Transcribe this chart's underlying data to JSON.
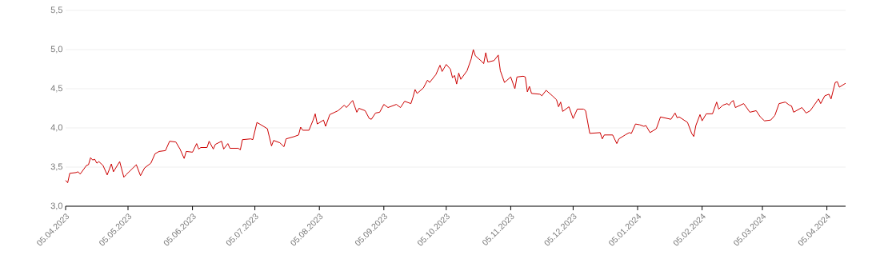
{
  "chart_data": {
    "type": "line",
    "x": [
      "2023-04-05",
      "2023-04-06",
      "2023-04-07",
      "2023-04-10",
      "2023-04-11",
      "2023-04-12",
      "2023-04-15",
      "2023-04-16",
      "2023-04-17",
      "2023-04-18",
      "2023-04-19",
      "2023-04-20",
      "2023-04-21",
      "2023-04-23",
      "2023-04-25",
      "2023-04-27",
      "2023-04-28",
      "2023-05-01",
      "2023-05-03",
      "2023-05-04",
      "2023-05-09",
      "2023-05-11",
      "2023-05-13",
      "2023-05-16",
      "2023-05-18",
      "2023-05-20",
      "2023-05-23",
      "2023-05-25",
      "2023-05-28",
      "2023-05-30",
      "2023-06-01",
      "2023-06-02",
      "2023-06-05",
      "2023-06-07",
      "2023-06-08",
      "2023-06-09",
      "2023-06-12",
      "2023-06-13",
      "2023-06-15",
      "2023-06-16",
      "2023-06-19",
      "2023-06-20",
      "2023-06-22",
      "2023-06-23",
      "2023-06-27",
      "2023-06-28",
      "2023-06-29",
      "2023-07-03",
      "2023-07-04",
      "2023-07-06",
      "2023-07-11",
      "2023-07-13",
      "2023-07-14",
      "2023-07-17",
      "2023-07-19",
      "2023-07-20",
      "2023-07-24",
      "2023-07-26",
      "2023-07-27",
      "2023-07-28",
      "2023-07-31",
      "2023-08-02",
      "2023-08-03",
      "2023-08-04",
      "2023-08-07",
      "2023-08-08",
      "2023-08-10",
      "2023-08-14",
      "2023-08-17",
      "2023-08-18",
      "2023-08-21",
      "2023-08-23",
      "2023-08-24",
      "2023-08-27",
      "2023-08-29",
      "2023-08-30",
      "2023-09-01",
      "2023-09-03",
      "2023-09-05",
      "2023-09-07",
      "2023-09-11",
      "2023-09-13",
      "2023-09-15",
      "2023-09-18",
      "2023-09-19",
      "2023-09-20",
      "2023-09-21",
      "2023-09-24",
      "2023-09-25",
      "2023-09-26",
      "2023-09-27",
      "2023-09-30",
      "2023-10-02",
      "2023-10-03",
      "2023-10-05",
      "2023-10-07",
      "2023-10-08",
      "2023-10-09",
      "2023-10-10",
      "2023-10-11",
      "2023-10-12",
      "2023-10-15",
      "2023-10-17",
      "2023-10-18",
      "2023-10-19",
      "2023-10-22",
      "2023-10-23",
      "2023-10-24",
      "2023-10-25",
      "2023-10-28",
      "2023-10-30",
      "2023-10-31",
      "2023-11-02",
      "2023-11-05",
      "2023-11-07",
      "2023-11-08",
      "2023-11-11",
      "2023-11-12",
      "2023-11-13",
      "2023-11-14",
      "2023-11-15",
      "2023-11-19",
      "2023-11-20",
      "2023-11-22",
      "2023-11-25",
      "2023-11-27",
      "2023-11-28",
      "2023-11-29",
      "2023-11-30",
      "2023-12-03",
      "2023-12-05",
      "2023-12-07",
      "2023-12-10",
      "2023-12-11",
      "2023-12-13",
      "2023-12-18",
      "2023-12-19",
      "2023-12-20",
      "2023-12-24",
      "2023-12-26",
      "2023-12-27",
      "2023-12-30",
      "2024-01-01",
      "2024-01-02",
      "2024-01-04",
      "2024-01-06",
      "2024-01-08",
      "2024-01-09",
      "2024-01-11",
      "2024-01-14",
      "2024-01-16",
      "2024-01-21",
      "2024-01-23",
      "2024-01-24",
      "2024-01-25",
      "2024-01-29",
      "2024-01-31",
      "2024-02-01",
      "2024-02-02",
      "2024-02-04",
      "2024-02-05",
      "2024-02-07",
      "2024-02-10",
      "2024-02-12",
      "2024-02-13",
      "2024-02-15",
      "2024-02-17",
      "2024-02-18",
      "2024-02-19",
      "2024-02-20",
      "2024-02-21",
      "2024-02-25",
      "2024-02-28",
      "2024-03-02",
      "2024-03-04",
      "2024-03-06",
      "2024-03-09",
      "2024-03-11",
      "2024-03-13",
      "2024-03-16",
      "2024-03-18",
      "2024-03-19",
      "2024-03-20",
      "2024-03-24",
      "2024-03-26",
      "2024-03-28",
      "2024-04-01",
      "2024-04-02",
      "2024-04-04",
      "2024-04-06",
      "2024-04-07",
      "2024-04-09",
      "2024-04-10",
      "2024-04-11",
      "2024-04-14"
    ],
    "series": [
      {
        "color": "#cc0000",
        "values": [
          3.33,
          3.3,
          3.42,
          3.43,
          3.44,
          3.41,
          3.52,
          3.53,
          3.62,
          3.59,
          3.6,
          3.55,
          3.57,
          3.52,
          3.4,
          3.54,
          3.44,
          3.57,
          3.37,
          3.4,
          3.53,
          3.39,
          3.49,
          3.55,
          3.67,
          3.7,
          3.71,
          3.83,
          3.82,
          3.73,
          3.61,
          3.7,
          3.69,
          3.8,
          3.73,
          3.75,
          3.75,
          3.83,
          3.73,
          3.79,
          3.83,
          3.73,
          3.8,
          3.74,
          3.74,
          3.72,
          3.85,
          3.86,
          3.85,
          4.07,
          3.99,
          3.77,
          3.84,
          3.81,
          3.76,
          3.86,
          3.89,
          3.91,
          4.01,
          3.97,
          3.97,
          4.1,
          4.18,
          4.05,
          4.1,
          4.02,
          4.17,
          4.22,
          4.29,
          4.26,
          4.35,
          4.2,
          4.25,
          4.22,
          4.12,
          4.11,
          4.19,
          4.2,
          4.3,
          4.26,
          4.3,
          4.26,
          4.34,
          4.31,
          4.39,
          4.49,
          4.44,
          4.51,
          4.56,
          4.61,
          4.58,
          4.68,
          4.8,
          4.72,
          4.81,
          4.75,
          4.64,
          4.67,
          4.56,
          4.7,
          4.62,
          4.73,
          4.88,
          5.0,
          4.92,
          4.85,
          4.82,
          4.96,
          4.84,
          4.86,
          4.93,
          4.73,
          4.58,
          4.65,
          4.5,
          4.65,
          4.66,
          4.65,
          4.46,
          4.53,
          4.44,
          4.43,
          4.41,
          4.48,
          4.41,
          4.36,
          4.27,
          4.33,
          4.21,
          4.27,
          4.12,
          4.24,
          4.24,
          4.22,
          3.93,
          3.94,
          3.86,
          3.91,
          3.91,
          3.8,
          3.86,
          3.91,
          3.94,
          3.93,
          4.05,
          4.04,
          4.02,
          4.03,
          3.94,
          3.99,
          4.14,
          4.11,
          4.19,
          4.13,
          4.14,
          4.07,
          3.93,
          3.89,
          4.03,
          4.17,
          4.09,
          4.18,
          4.18,
          4.33,
          4.24,
          4.29,
          4.31,
          4.29,
          4.33,
          4.35,
          4.26,
          4.31,
          4.2,
          4.22,
          4.14,
          4.09,
          4.1,
          4.16,
          4.31,
          4.33,
          4.29,
          4.28,
          4.2,
          4.26,
          4.19,
          4.22,
          4.37,
          4.31,
          4.41,
          4.43,
          4.37,
          4.58,
          4.59,
          4.52,
          4.57
        ]
      }
    ],
    "xlim": [
      "2023-04-05",
      "2024-04-14"
    ],
    "ylim": [
      3.0,
      5.5
    ],
    "xticks": [
      {
        "value": "2023-04-05",
        "label": "05.04.2023"
      },
      {
        "value": "2023-05-05",
        "label": "05.05.2023"
      },
      {
        "value": "2023-06-05",
        "label": "05.06.2023"
      },
      {
        "value": "2023-07-05",
        "label": "05.07.2023"
      },
      {
        "value": "2023-08-05",
        "label": "05.08.2023"
      },
      {
        "value": "2023-09-05",
        "label": "05.09.2023"
      },
      {
        "value": "2023-10-05",
        "label": "05.10.2023"
      },
      {
        "value": "2023-11-05",
        "label": "05.11.2023"
      },
      {
        "value": "2023-12-05",
        "label": "05.12.2023"
      },
      {
        "value": "2024-01-05",
        "label": "05.01.2024"
      },
      {
        "value": "2024-02-05",
        "label": "05.02.2024"
      },
      {
        "value": "2024-03-05",
        "label": "05.03.2024"
      },
      {
        "value": "2024-04-05",
        "label": "05.04.2024"
      }
    ],
    "yticks": [
      {
        "value": 3.0,
        "label": "3,0"
      },
      {
        "value": 3.5,
        "label": "3,5"
      },
      {
        "value": 4.0,
        "label": "4,0"
      },
      {
        "value": 4.5,
        "label": "4,5"
      },
      {
        "value": 5.0,
        "label": "5,0"
      },
      {
        "value": 5.5,
        "label": "5,5"
      }
    ],
    "grid": "y"
  }
}
